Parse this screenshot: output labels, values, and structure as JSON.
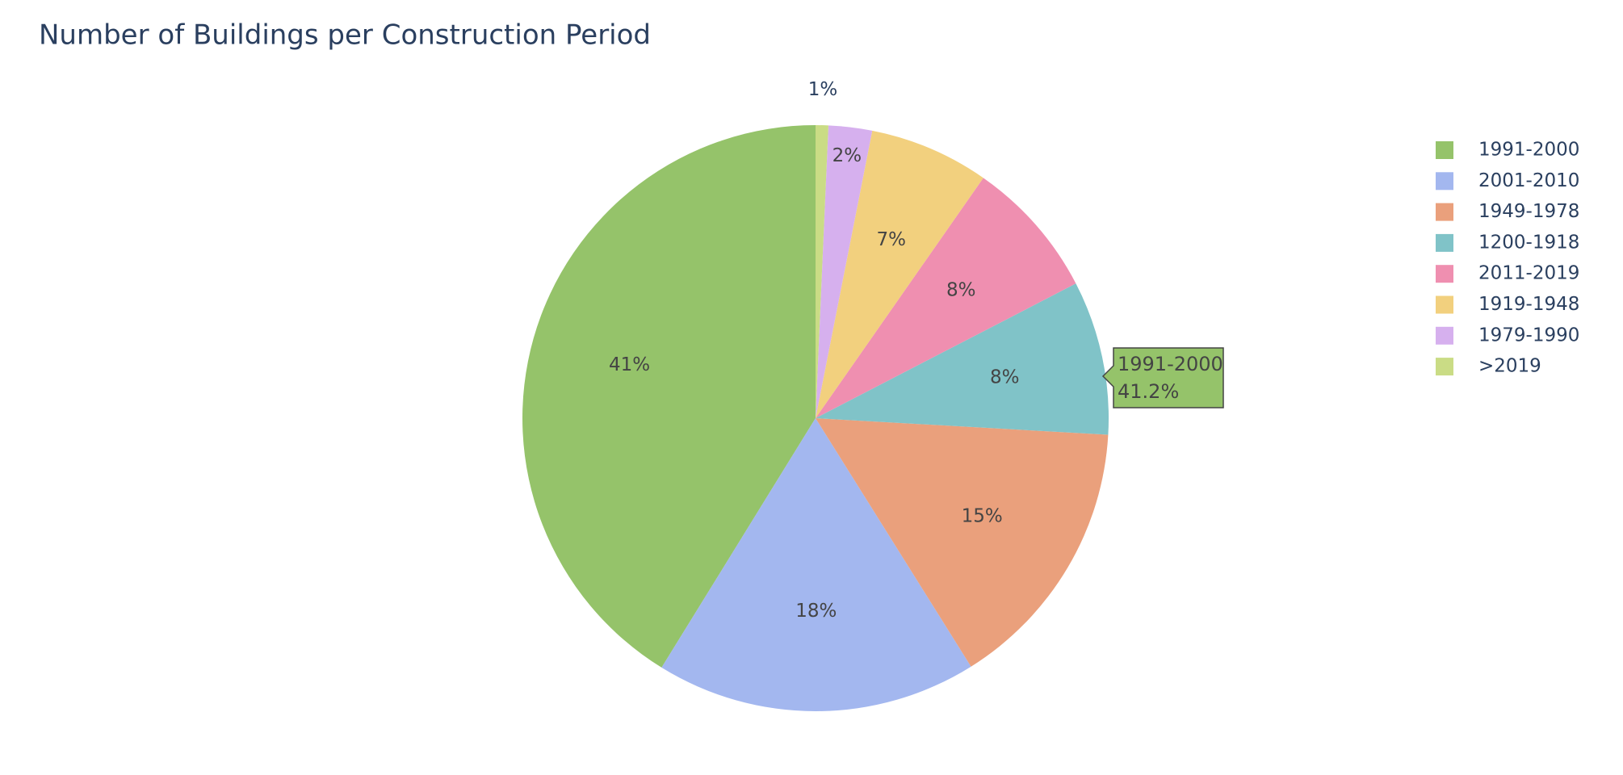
{
  "chart_data": {
    "type": "pie",
    "title": "Number of Buildings per Construction Period",
    "categories": [
      "1991-2000",
      "2001-2010",
      "1949-1978",
      "1200-1918",
      "2011-2019",
      "1919-1948",
      "1979-1990",
      ">2019"
    ],
    "values": [
      41.2,
      17.7,
      15.2,
      8.5,
      7.7,
      6.6,
      2.4,
      0.7
    ],
    "value_labels": [
      "41%",
      "18%",
      "15%",
      "8%",
      "8%",
      "7%",
      "2%",
      "1%"
    ],
    "colors": [
      "#95c36a",
      "#a3b7ef",
      "#eaa07c",
      "#80c3c8",
      "#ef8fb0",
      "#f2d07e",
      "#d6b0ee",
      "#cadc85"
    ],
    "direction": "counterclockwise",
    "legend": "right",
    "hover": {
      "name": "1991-2000",
      "text": "41.2%"
    }
  }
}
